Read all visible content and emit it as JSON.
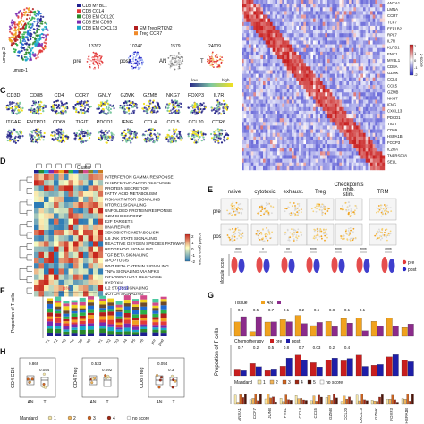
{
  "panels": {
    "C": "C",
    "D": "D",
    "E": "E",
    "F": "F",
    "G": "G",
    "H": "H"
  },
  "panelA": {
    "axis_x": "umap-1",
    "axis_y": "umap-2",
    "legend": [
      "CD8 MYBL1",
      "CD8 CCL4",
      "CD8 EM CCL20",
      "CD8 EM CD69",
      "CD8 EM CXCL13"
    ],
    "legend2": [
      "EM Treg RTKN2",
      "Treg CCR7"
    ],
    "legend_colors": [
      "#1f1f8f",
      "#e23a3a",
      "#2a8a2a",
      "#7a2ab0",
      "#1aa8c8"
    ],
    "legend2_colors": [
      "#b21e1e",
      "#f08a2a"
    ],
    "counts": [
      "13762",
      "10247",
      "1579",
      "24009"
    ],
    "labels": [
      "pre",
      "post",
      "AN",
      "T"
    ]
  },
  "heatmapB": {
    "genes": [
      "ANXA1",
      "LMNA",
      "CCR7",
      "TCF7",
      "EEF1B2",
      "RPL7",
      "IL7R",
      "KLRB1",
      "ENC1",
      "MYBL1",
      "CD8A",
      "GZMK",
      "CCL4",
      "CCL5",
      "GZMB",
      "NKG7",
      "IFNG",
      "CXCL13",
      "PDCD1",
      "TIGIT",
      "CD69",
      "HSPA1B",
      "FOXP3",
      "IL2RA",
      "TNFRSF18",
      "SELL"
    ],
    "colorbar_label": "z-score",
    "colorbar_ticks": [
      "2",
      "1",
      "0",
      "-1",
      "-2"
    ]
  },
  "panelC": {
    "row1": [
      "CD3D",
      "CD8B",
      "CD4",
      "CCR7",
      "GNLY",
      "GZMK",
      "GZMB",
      "NKG7",
      "FOXP3",
      "IL7R"
    ],
    "row2": [
      "ITGAE",
      "ENTPD1",
      "CD69",
      "TIGIT",
      "PDCD1",
      "IFNG",
      "CCL4",
      "CCL5",
      "CCL20",
      "CCR6"
    ],
    "scale_low": "low",
    "scale_high": "high"
  },
  "panelD": {
    "cluster_label": "Cluster",
    "pathways": [
      "INTERFERON GAMMA RESPONSE",
      "INTERFERON ALPHA RESPONSE",
      "PROTEIN SECRETION",
      "FATTY ACID METABOLISM",
      "PI3K AKT MTOR SIGNALING",
      "MTORC1 SIGNALING",
      "UNFOLDED PROTEIN RESPONSE",
      "G2M CHECKPOINT",
      "E2F TARGETS",
      "DNA REPAIR",
      "XENOBIOTIC METABOLISM",
      "IL6 JAK STAT3 SIGNALING",
      "REACTIVE OXYGEN SPECIES PATHWAY",
      "HEDGEHOG SIGNALING",
      "TGF BETA SIGNALING",
      "APOPTOSIS",
      "WNT BETA CATENIN SIGNALING",
      "TNFA SIGNALING VIA NFKB",
      "INFLAMMATORY RESPONSE",
      "HYPOXIA",
      "IL2 STAT5 SIGNALING",
      "NOTCH SIGNALING"
    ],
    "colorbar_label": "scaled gsva score",
    "colorbar_ticks": [
      "2",
      "1",
      "0",
      "-1",
      "-2"
    ]
  },
  "panelE": {
    "columns": [
      "naive",
      "cytotoxic",
      "exhaust.",
      "Treg",
      "Checkpoints\ninhib.\nstim.",
      "TRM"
    ],
    "rows": [
      "pre",
      "post"
    ],
    "ylabel": "Module score",
    "legend": [
      "pre",
      "post"
    ],
    "legend_colors": [
      "#e23a3a",
      "#2a2ac8"
    ],
    "significance": [
      "***",
      "*",
      "**",
      "****",
      "****",
      "****",
      "****"
    ]
  },
  "panelF": {
    "ylabel": "Proportion of T cells",
    "group_pre": "pre",
    "group_post": "post",
    "group_pre_color": "#e23a3a",
    "group_post_color": "#2a2ac8",
    "xticks": [
      "P1",
      "P2",
      "P3",
      "P4",
      "P5",
      "P6",
      "P1",
      "P2",
      "P3",
      "P4",
      "P5",
      "P6",
      "pre",
      "post"
    ]
  },
  "panelG": {
    "ylabel": "Proportion of T cells",
    "tissue_label": "Tissue",
    "tissue_legend": [
      "AN",
      "T"
    ],
    "tissue_colors": [
      "#f0a21e",
      "#8b2b8b"
    ],
    "chemo_label": "Chemotherapy",
    "chemo_legend": [
      "pre",
      "post"
    ],
    "chemo_colors": [
      "#c81e1e",
      "#1e1ea8"
    ],
    "mandard_label": "Mandard",
    "mandard_legend": [
      "1",
      "2",
      "3",
      "4",
      "5",
      "no score"
    ],
    "mandard_colors": [
      "#f5e6a8",
      "#f0b45a",
      "#d2641e",
      "#a02814",
      "#501408",
      "#ffffff"
    ],
    "tissue_values": [
      "0.3",
      "0.5",
      "0.7",
      "0.1",
      "0.2",
      "0.6",
      "0.8",
      "0.1",
      "0.1"
    ],
    "chemo_values": [
      "0.7",
      "0.2",
      "0.5",
      "0.8",
      "0.7",
      "0.03",
      "0.2",
      "0.4"
    ],
    "xticks": [
      "ANXA1",
      "CCR7",
      "JUNB",
      "FYBL",
      "CCL4",
      "CCL5",
      "GZMB",
      "CCL20",
      "CXCL13",
      "GZMK",
      "FOXP3",
      "HSPA1B"
    ]
  },
  "panelH": {
    "ylabels": [
      "CD4 CD8",
      "CD4 Treg",
      "CD8 Treg"
    ],
    "pvalues": [
      "0.869",
      "0.533",
      "0.094"
    ],
    "pvalues2": [
      "0.054",
      "0.092",
      "0.3"
    ],
    "xticks": [
      "AN",
      "T"
    ],
    "mandard_label": "Mandard",
    "mandard_legend": [
      "1",
      "2",
      "3",
      "4",
      "no score"
    ],
    "mandard_colors": [
      "#f5e6a8",
      "#f0b45a",
      "#d2641e",
      "#a02814",
      "#ffffff"
    ]
  }
}
